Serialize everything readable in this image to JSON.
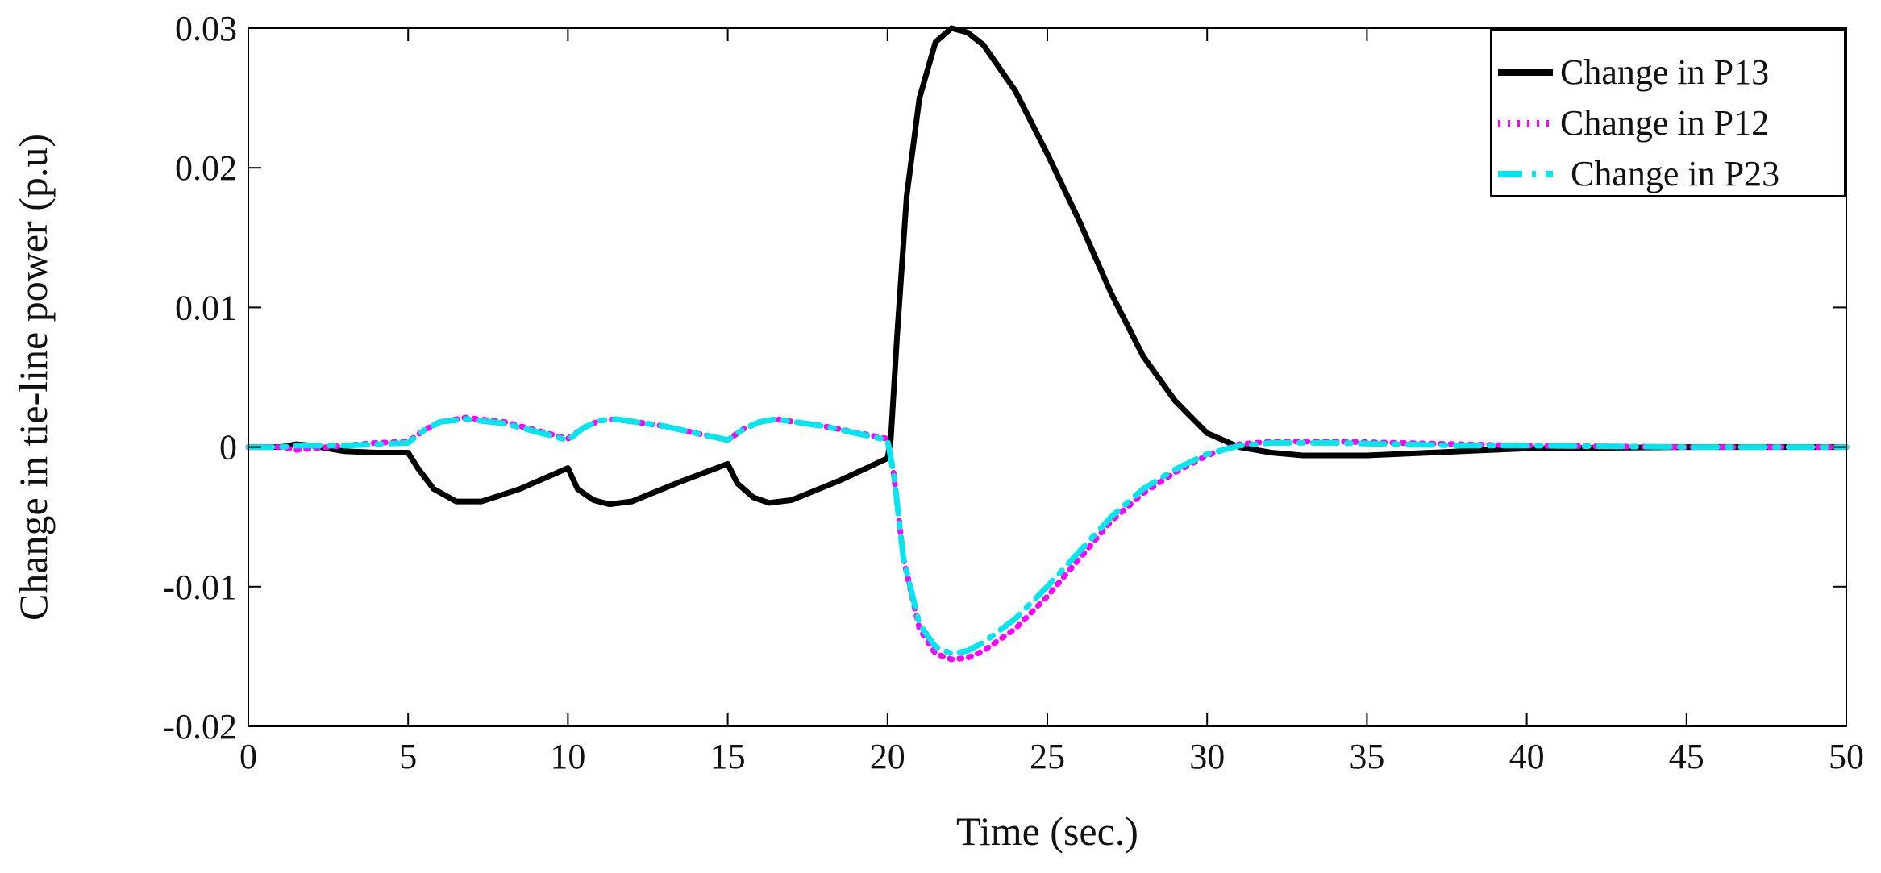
{
  "chart_data": {
    "type": "line",
    "title": "",
    "xlabel": "Time (sec.)",
    "ylabel": "Change in tie-line power (p.u)",
    "xlim": [
      0,
      50
    ],
    "ylim": [
      -0.02,
      0.03
    ],
    "xticks": [
      0,
      5,
      10,
      15,
      20,
      25,
      30,
      35,
      40,
      45,
      50
    ],
    "xtick_labels": [
      "0",
      "5",
      "10",
      "15",
      "20",
      "25",
      "30",
      "35",
      "40",
      "45",
      "50"
    ],
    "yticks": [
      -0.02,
      -0.01,
      0,
      0.01,
      0.02,
      0.03
    ],
    "ytick_labels": [
      "-0.02",
      "-0.01",
      "0",
      "0.01",
      "0.02",
      "0.03"
    ],
    "grid": false,
    "legend_position": "top-right",
    "series": [
      {
        "name": "Change in P13",
        "color": "#000000",
        "style": "solid",
        "points": [
          [
            0,
            0
          ],
          [
            1,
            0
          ],
          [
            1.5,
            0.0002
          ],
          [
            2,
            0.0001
          ],
          [
            3,
            -0.0003
          ],
          [
            4,
            -0.0004
          ],
          [
            5,
            -0.0004
          ],
          [
            5.3,
            -0.0015
          ],
          [
            5.8,
            -0.003
          ],
          [
            6.5,
            -0.0039
          ],
          [
            7.3,
            -0.0039
          ],
          [
            8.5,
            -0.003
          ],
          [
            10,
            -0.0015
          ],
          [
            10.3,
            -0.003
          ],
          [
            10.8,
            -0.0038
          ],
          [
            11.3,
            -0.0041
          ],
          [
            12,
            -0.0039
          ],
          [
            13.5,
            -0.0025
          ],
          [
            15,
            -0.0012
          ],
          [
            15.3,
            -0.0026
          ],
          [
            15.8,
            -0.0036
          ],
          [
            16.3,
            -0.004
          ],
          [
            17,
            -0.0038
          ],
          [
            18.5,
            -0.0024
          ],
          [
            20,
            -0.0008
          ],
          [
            20.1,
            0.0005
          ],
          [
            20.3,
            0.008
          ],
          [
            20.6,
            0.018
          ],
          [
            21,
            0.025
          ],
          [
            21.5,
            0.029
          ],
          [
            22,
            0.03
          ],
          [
            22.5,
            0.0297
          ],
          [
            23,
            0.0288
          ],
          [
            24,
            0.0255
          ],
          [
            25,
            0.021
          ],
          [
            26,
            0.0162
          ],
          [
            27,
            0.011
          ],
          [
            28,
            0.0065
          ],
          [
            29,
            0.0033
          ],
          [
            30,
            0.001
          ],
          [
            31,
            0.0
          ],
          [
            32,
            -0.0004
          ],
          [
            33,
            -0.0006
          ],
          [
            35,
            -0.0006
          ],
          [
            37,
            -0.0004
          ],
          [
            40,
            -0.0001
          ],
          [
            45,
            0
          ],
          [
            50,
            0
          ]
        ]
      },
      {
        "name": "Change in P12",
        "color": "#ff00ff",
        "style": "dotted",
        "points": [
          [
            0,
            0
          ],
          [
            1,
            0
          ],
          [
            1.5,
            -0.0002
          ],
          [
            2,
            -0.0001
          ],
          [
            3,
            0.0001
          ],
          [
            4,
            0.0003
          ],
          [
            5,
            0.0004
          ],
          [
            5.5,
            0.0012
          ],
          [
            6,
            0.0018
          ],
          [
            6.8,
            0.0021
          ],
          [
            8,
            0.0018
          ],
          [
            9,
            0.0012
          ],
          [
            10,
            0.0006
          ],
          [
            10.5,
            0.0014
          ],
          [
            11,
            0.0019
          ],
          [
            11.5,
            0.002
          ],
          [
            13,
            0.0015
          ],
          [
            15,
            0.0005
          ],
          [
            15.5,
            0.0013
          ],
          [
            16,
            0.0018
          ],
          [
            16.5,
            0.002
          ],
          [
            18,
            0.0015
          ],
          [
            20,
            0.0006
          ],
          [
            20.2,
            -0.002
          ],
          [
            20.5,
            -0.008
          ],
          [
            21,
            -0.013
          ],
          [
            21.5,
            -0.0148
          ],
          [
            22,
            -0.0152
          ],
          [
            22.5,
            -0.0151
          ],
          [
            23,
            -0.0146
          ],
          [
            24,
            -0.013
          ],
          [
            25,
            -0.0107
          ],
          [
            26,
            -0.008
          ],
          [
            27,
            -0.0053
          ],
          [
            28,
            -0.0033
          ],
          [
            29,
            -0.0018
          ],
          [
            30,
            -0.0006
          ],
          [
            31,
            0.0002
          ],
          [
            32,
            0.0004
          ],
          [
            34,
            0.0004
          ],
          [
            36,
            0.0003
          ],
          [
            38,
            0.0002
          ],
          [
            40,
            0.0001
          ],
          [
            45,
            0
          ],
          [
            50,
            0
          ]
        ]
      },
      {
        "name": "Change in P23",
        "color": "#00e5ee",
        "style": "dash-dot",
        "points": [
          [
            0,
            0
          ],
          [
            1,
            0
          ],
          [
            1.5,
            0.0001
          ],
          [
            2,
            0.0001
          ],
          [
            3,
            0.0001
          ],
          [
            4,
            0.0002
          ],
          [
            5,
            0.0003
          ],
          [
            5.5,
            0.0012
          ],
          [
            6,
            0.0018
          ],
          [
            6.8,
            0.002
          ],
          [
            8,
            0.0017
          ],
          [
            9,
            0.0011
          ],
          [
            10,
            0.0005
          ],
          [
            10.5,
            0.0014
          ],
          [
            11,
            0.0019
          ],
          [
            11.5,
            0.002
          ],
          [
            13,
            0.0015
          ],
          [
            15,
            0.0005
          ],
          [
            15.5,
            0.0013
          ],
          [
            16,
            0.0018
          ],
          [
            16.5,
            0.002
          ],
          [
            18,
            0.0015
          ],
          [
            20,
            0.0005
          ],
          [
            20.2,
            -0.002
          ],
          [
            20.5,
            -0.008
          ],
          [
            21,
            -0.0127
          ],
          [
            21.5,
            -0.0143
          ],
          [
            22,
            -0.0148
          ],
          [
            22.5,
            -0.0146
          ],
          [
            23,
            -0.014
          ],
          [
            24,
            -0.0123
          ],
          [
            25,
            -0.01
          ],
          [
            26,
            -0.0075
          ],
          [
            27,
            -0.005
          ],
          [
            28,
            -0.003
          ],
          [
            29,
            -0.0016
          ],
          [
            30,
            -0.0005
          ],
          [
            31,
            0.0001
          ],
          [
            32,
            0.0003
          ],
          [
            34,
            0.0003
          ],
          [
            36,
            0.0002
          ],
          [
            38,
            0.0001
          ],
          [
            40,
            0.0001
          ],
          [
            45,
            0
          ],
          [
            50,
            0
          ]
        ]
      }
    ]
  }
}
